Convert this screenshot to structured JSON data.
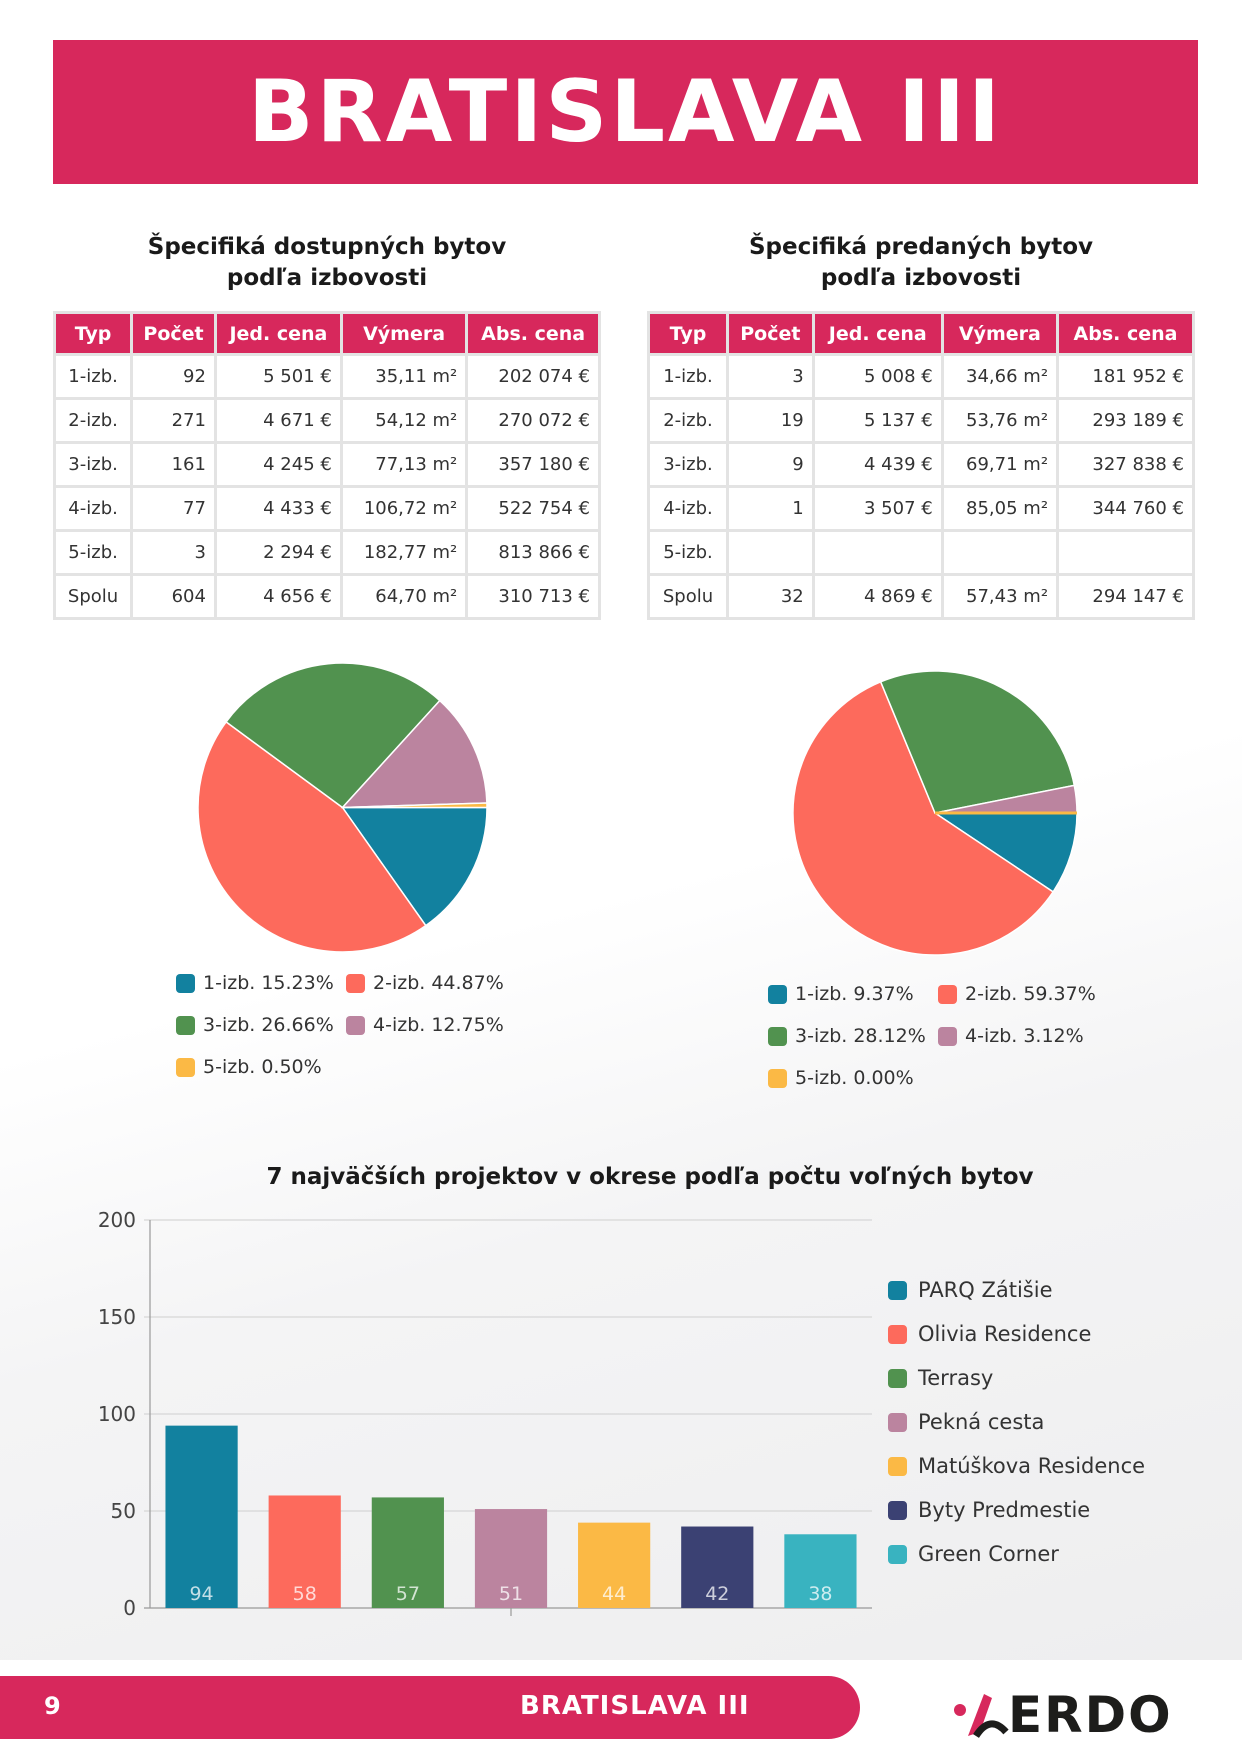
{
  "header": {
    "title": "BRATISLAVA III"
  },
  "available": {
    "title_line1": "Špecifiká dostupných bytov",
    "title_line2": "podľa izbovosti",
    "columns": [
      "Typ",
      "Počet",
      "Jed. cena",
      "Výmera",
      "Abs. cena"
    ],
    "rows": [
      [
        "1-izb.",
        "92",
        "5 501 €",
        "35,11 m²",
        "202 074 €"
      ],
      [
        "2-izb.",
        "271",
        "4 671 €",
        "54,12 m²",
        "270 072 €"
      ],
      [
        "3-izb.",
        "161",
        "4 245 €",
        "77,13 m²",
        "357 180 €"
      ],
      [
        "4-izb.",
        "77",
        "4 433 €",
        "106,72 m²",
        "522 754 €"
      ],
      [
        "5-izb.",
        "3",
        "2 294 €",
        "182,77 m²",
        "813 866 €"
      ],
      [
        "Spolu",
        "604",
        "4 656 €",
        "64,70 m²",
        "310 713 €"
      ]
    ]
  },
  "sold": {
    "title_line1": "Špecifiká predaných bytov",
    "title_line2": "podľa izbovosti",
    "columns": [
      "Typ",
      "Počet",
      "Jed. cena",
      "Výmera",
      "Abs. cena"
    ],
    "rows": [
      [
        "1-izb.",
        "3",
        "5 008 €",
        "34,66 m²",
        "181 952 €"
      ],
      [
        "2-izb.",
        "19",
        "5 137 €",
        "53,76 m²",
        "293 189 €"
      ],
      [
        "3-izb.",
        "9",
        "4 439 €",
        "69,71 m²",
        "327 838 €"
      ],
      [
        "4-izb.",
        "1",
        "3 507 €",
        "85,05 m²",
        "344 760 €"
      ],
      [
        "5-izb.",
        "",
        "",
        "",
        ""
      ],
      [
        "Spolu",
        "32",
        "4 869 €",
        "57,43 m²",
        "294 147 €"
      ]
    ]
  },
  "colors": {
    "teal": "#12819f",
    "salmon": "#fd6a5c",
    "green": "#51924f",
    "mauve": "#bb849f",
    "yellow": "#fbb945",
    "navy": "#3b4173",
    "cyan": "#39b3c0",
    "brand": "#d7285c"
  },
  "chart_data": [
    {
      "type": "pie",
      "labels": [
        "1-izb.",
        "2-izb.",
        "3-izb.",
        "4-izb.",
        "5-izb."
      ],
      "values": [
        15.23,
        44.87,
        26.66,
        12.75,
        0.5
      ],
      "legend": [
        "1-izb. 15.23%",
        "2-izb. 44.87%",
        "3-izb. 26.66%",
        "4-izb. 12.75%",
        "5-izb. 0.50%"
      ]
    },
    {
      "type": "pie",
      "labels": [
        "1-izb.",
        "2-izb.",
        "3-izb.",
        "4-izb.",
        "5-izb."
      ],
      "values": [
        9.37,
        59.37,
        28.12,
        3.12,
        0.0
      ],
      "legend": [
        "1-izb. 9.37%",
        "2-izb. 59.37%",
        "3-izb. 28.12%",
        "4-izb. 3.12%",
        "5-izb. 0.00%"
      ]
    },
    {
      "type": "bar",
      "title": "7 najväčších projektov v okrese podľa počtu voľných bytov",
      "categories": [
        "PARQ Zátišie",
        "Olivia Residence",
        "Terrasy",
        "Pekná cesta",
        "Matúškova Residence",
        "Byty Predmestie",
        "Green Corner"
      ],
      "values": [
        94,
        58,
        57,
        51,
        44,
        42,
        38
      ],
      "data_labels": [
        "94",
        "58",
        "57",
        "51",
        "44",
        "42",
        "38"
      ],
      "ylim": [
        0,
        200
      ],
      "yticks": [
        "0",
        "50",
        "100",
        "150",
        "200"
      ],
      "grid": true,
      "legend_position": "right"
    }
  ],
  "footer": {
    "page_number": "9",
    "title": "BRATISLAVA III",
    "logo_text": "ERDO"
  }
}
